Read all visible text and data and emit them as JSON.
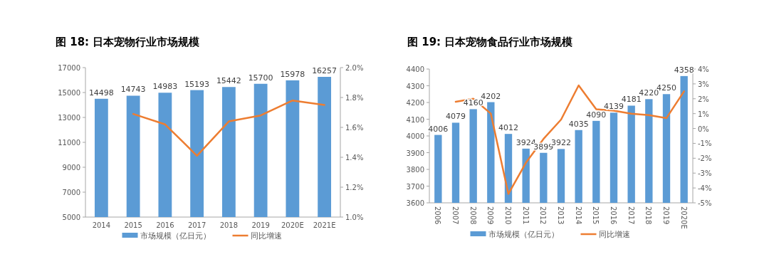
{
  "chart_data": [
    {
      "type": "bar",
      "title": "图 18:  日本宠物行业市场规模",
      "categories": [
        "2014",
        "2015",
        "2016",
        "2017",
        "2018",
        "2019",
        "2020E",
        "2021E"
      ],
      "series": [
        {
          "name": "市场规模（亿日元）",
          "color": "#5b9bd5",
          "values": [
            14498,
            14743,
            14983,
            15193,
            15442,
            15700,
            15978,
            16257
          ],
          "value_labels": [
            "14498",
            "14743",
            "14983",
            "15193",
            "15442",
            "15700",
            "15978",
            "16257"
          ]
        },
        {
          "name": "同比增速",
          "type": "line",
          "axis": "y2",
          "color": "#ed7d31",
          "values": [
            null,
            1.69,
            1.62,
            1.41,
            1.64,
            1.68,
            1.78,
            1.75
          ]
        }
      ],
      "ylim": [
        5000,
        17000
      ],
      "yticks": [
        5000,
        7000,
        9000,
        11000,
        13000,
        15000,
        17000
      ],
      "y2lim": [
        1.0,
        2.0
      ],
      "y2ticks": [
        {
          "value": 1.0,
          "label": "1.0%"
        },
        {
          "value": 1.2,
          "label": "1.2%"
        },
        {
          "value": 1.4,
          "label": "1.4%"
        },
        {
          "value": 1.6,
          "label": "1.6%"
        },
        {
          "value": 1.8,
          "label": "1.8%"
        },
        {
          "value": 2.0,
          "label": "2.0%"
        }
      ],
      "legend": "bottom"
    },
    {
      "type": "bar",
      "title": "图 19:  日本宠物食品行业市场规模",
      "categories": [
        "2006",
        "2007",
        "2008",
        "2009",
        "2010",
        "2011",
        "2012",
        "2013",
        "2014",
        "2015",
        "2016",
        "2017",
        "2018",
        "2019",
        "2020E"
      ],
      "series": [
        {
          "name": "市场规模（亿日元）",
          "color": "#5b9bd5",
          "values": [
            4006,
            4079,
            4160,
            4202,
            4012,
            3924,
            3899,
            3922,
            4035,
            4090,
            4139,
            4181,
            4220,
            4250,
            4358
          ],
          "value_labels": [
            "4006",
            "4079",
            "4160",
            "4202",
            "4012",
            "3924",
            "3899",
            "3922",
            "4035",
            "4090",
            "4139",
            "4181",
            "4220",
            "4250",
            "4358"
          ]
        },
        {
          "name": "同比增速",
          "type": "line",
          "axis": "y2",
          "color": "#ed7d31",
          "values": [
            null,
            1.8,
            2.0,
            1.0,
            -4.4,
            -2.3,
            -0.7,
            0.6,
            2.9,
            1.3,
            1.2,
            1.0,
            0.9,
            0.7,
            2.5
          ]
        }
      ],
      "ylim": [
        3600,
        4400
      ],
      "yticks": [
        3600,
        3700,
        3800,
        3900,
        4000,
        4100,
        4200,
        4300,
        4400
      ],
      "y2lim": [
        -5,
        4
      ],
      "y2ticks": [
        {
          "value": -5,
          "label": "-5%"
        },
        {
          "value": -4,
          "label": "-4%"
        },
        {
          "value": -3,
          "label": "-3%"
        },
        {
          "value": -2,
          "label": "-2%"
        },
        {
          "value": -1,
          "label": "-1%"
        },
        {
          "value": 0,
          "label": "0%"
        },
        {
          "value": 1,
          "label": "1%"
        },
        {
          "value": 2,
          "label": "2%"
        },
        {
          "value": 3,
          "label": "3%"
        },
        {
          "value": 4,
          "label": "4%"
        }
      ],
      "legend": "bottom"
    }
  ]
}
